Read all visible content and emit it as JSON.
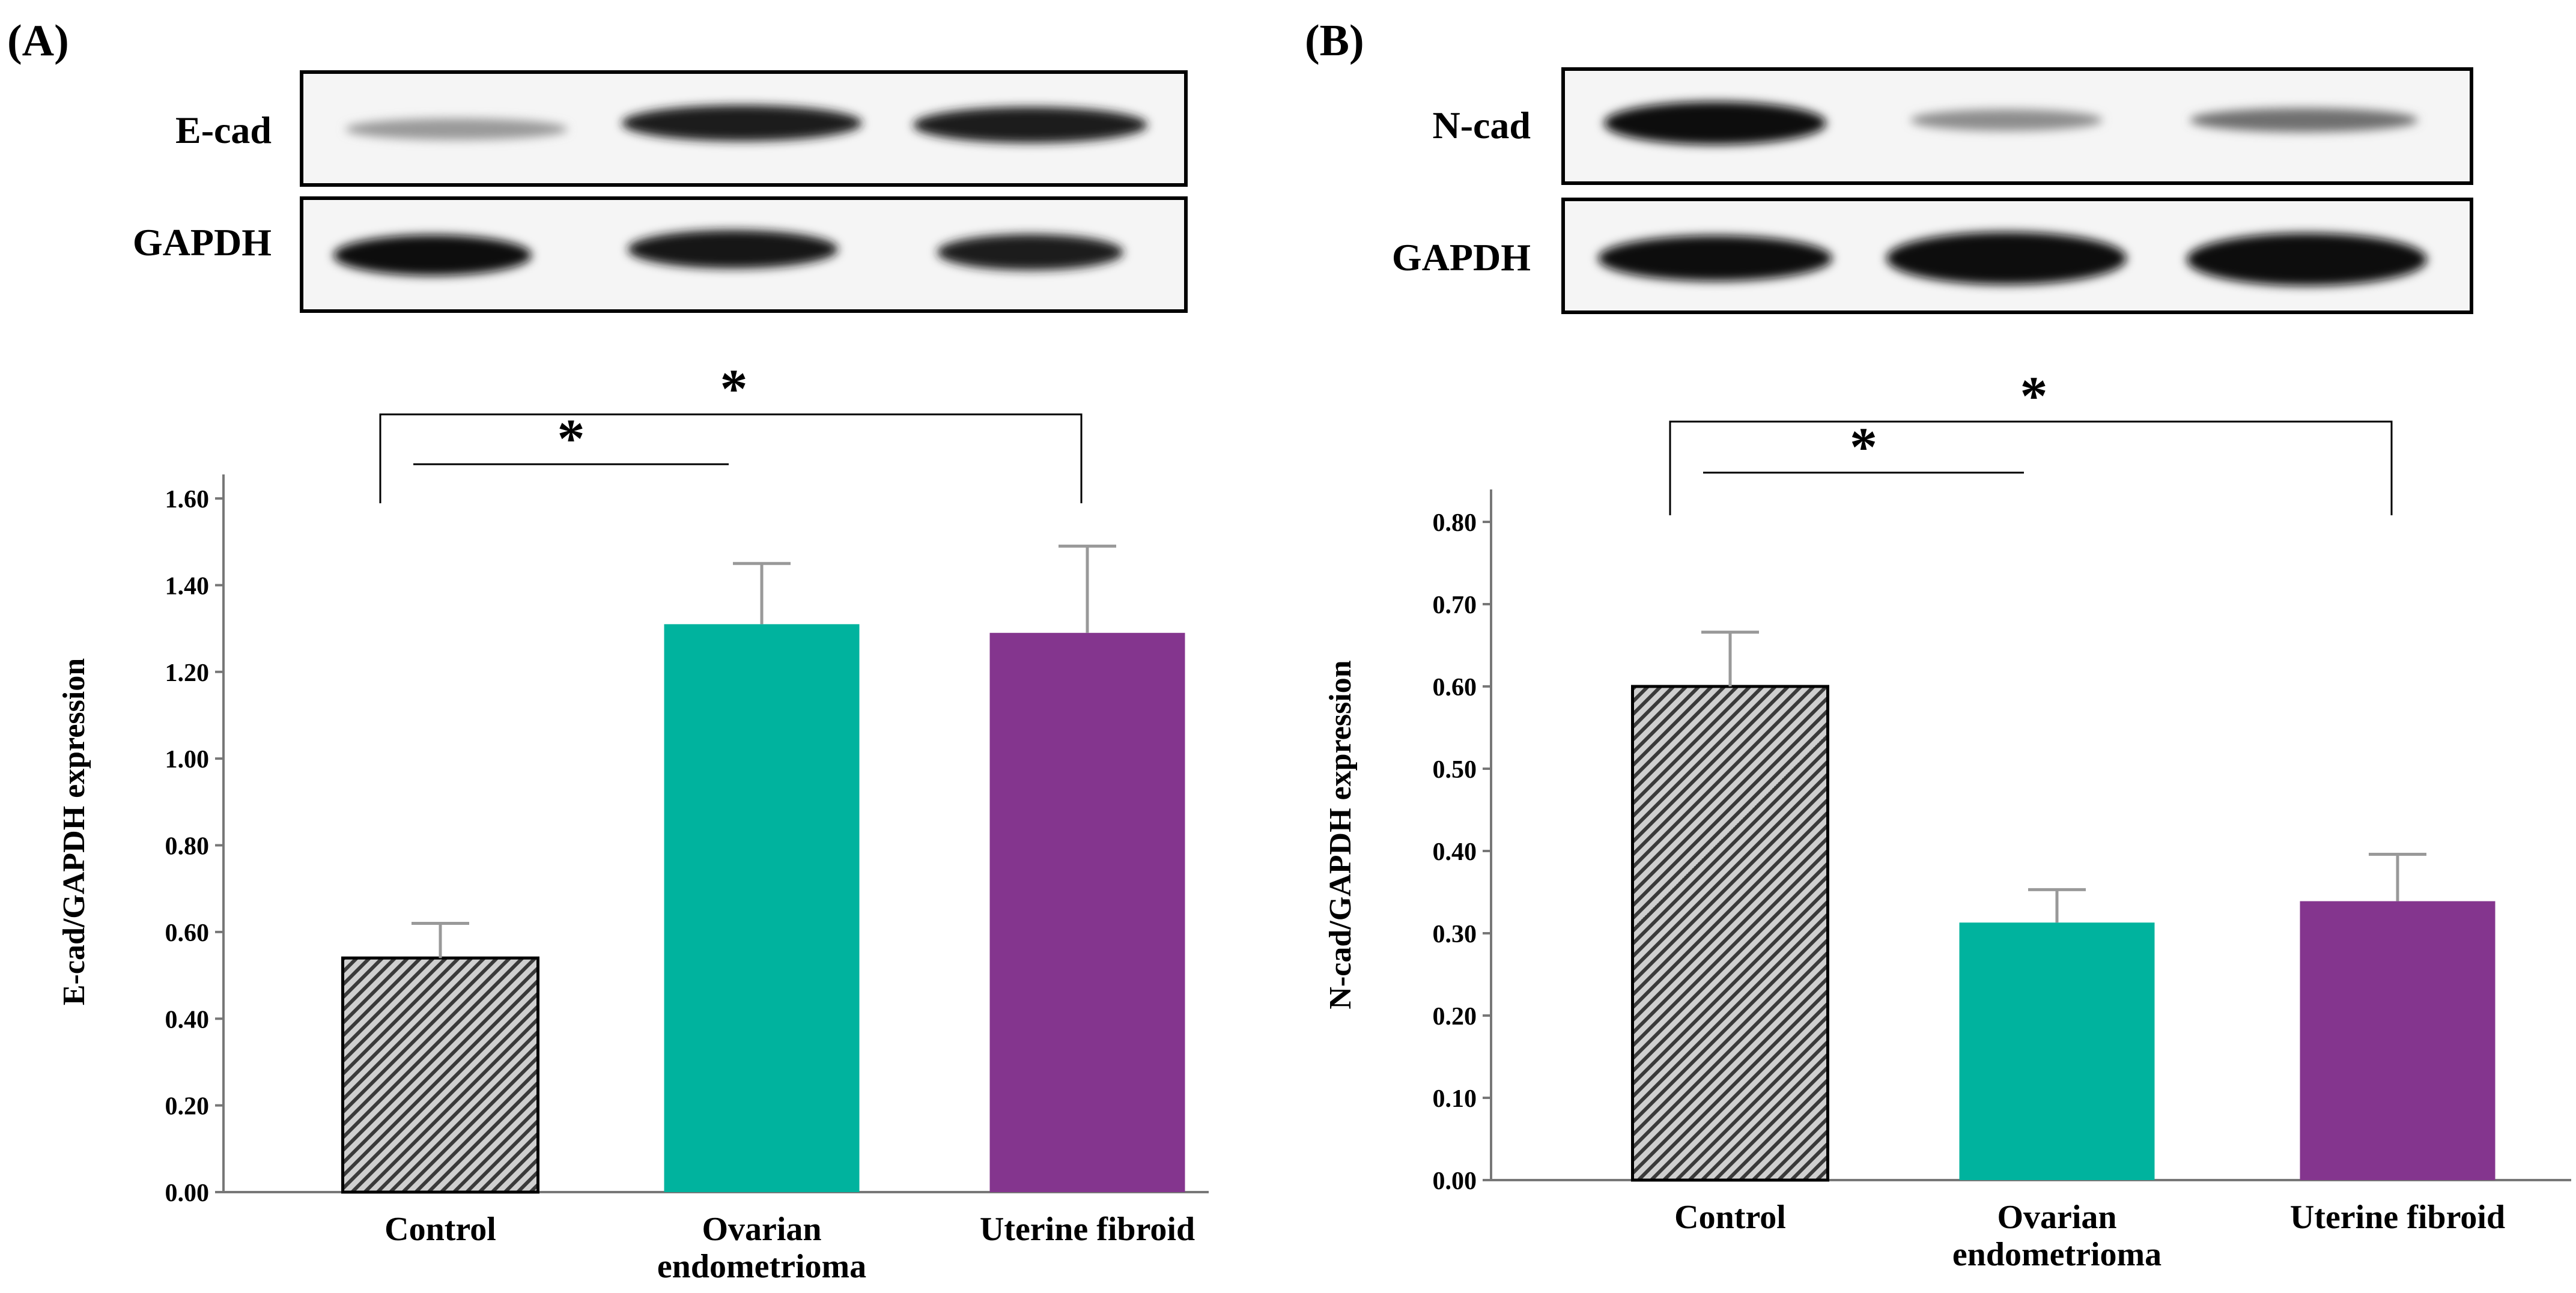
{
  "figure": {
    "colors": {
      "control_fill": "hatched-gray",
      "ovarian": "#00B39E",
      "uterine": "#84358E",
      "axis": "#777777"
    }
  },
  "chart_data": [
    {
      "panel_label": "(A)",
      "type": "bar",
      "blot": {
        "target_label": "E-cad",
        "loading_label": "GAPDH"
      },
      "categories": [
        "Control",
        "Ovarian endometrioma",
        "Uterine fibroid"
      ],
      "category_lines": [
        [
          "Control"
        ],
        [
          "Ovarian",
          "endometrioma"
        ],
        [
          "Uterine fibroid"
        ]
      ],
      "values": [
        0.54,
        1.31,
        1.29
      ],
      "errors": [
        0.08,
        0.14,
        0.2
      ],
      "ylabel": "E-cad/GAPDH expression",
      "ylim": [
        0,
        1.6
      ],
      "yticks": [
        "0.00",
        "0.20",
        "0.40",
        "0.60",
        "0.80",
        "1.00",
        "1.20",
        "1.40",
        "1.60"
      ],
      "significance": [
        {
          "from": 0,
          "to": 1,
          "label": "*"
        },
        {
          "from": 0,
          "to": 2,
          "label": "*"
        }
      ]
    },
    {
      "panel_label": "(B)",
      "type": "bar",
      "blot": {
        "target_label": "N-cad",
        "loading_label": "GAPDH"
      },
      "categories": [
        "Control",
        "Ovarian endometrioma",
        "Uterine fibroid"
      ],
      "category_lines": [
        [
          "Control"
        ],
        [
          "Ovarian",
          "endometrioma"
        ],
        [
          "Uterine fibroid"
        ]
      ],
      "values": [
        0.6,
        0.313,
        0.339
      ],
      "errors": [
        0.066,
        0.04,
        0.057
      ],
      "ylabel": "N-cad/GAPDH expression",
      "ylim": [
        0,
        0.8
      ],
      "yticks": [
        "0.00",
        "0.10",
        "0.20",
        "0.30",
        "0.40",
        "0.50",
        "0.60",
        "0.70",
        "0.80"
      ],
      "significance": [
        {
          "from": 0,
          "to": 1,
          "label": "*"
        },
        {
          "from": 0,
          "to": 2,
          "label": "*"
        }
      ]
    }
  ]
}
